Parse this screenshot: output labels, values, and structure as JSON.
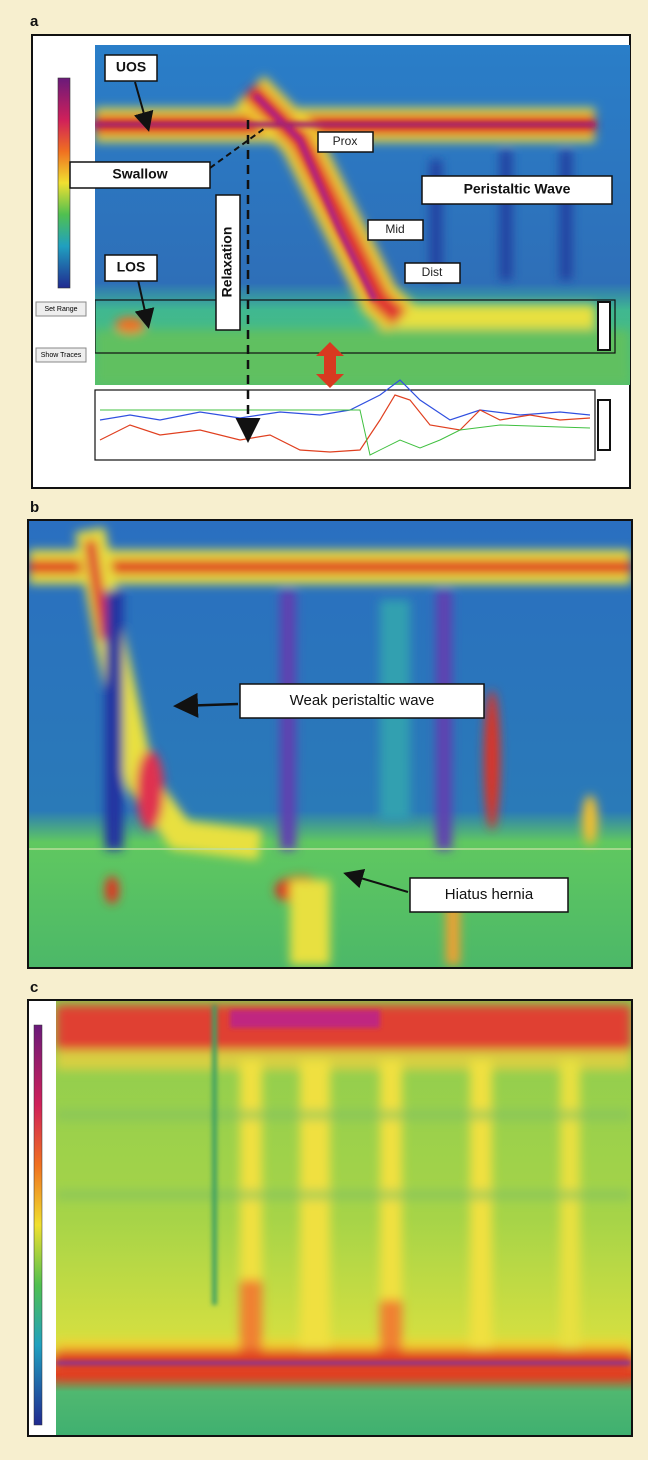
{
  "panels": [
    {
      "label": "a",
      "annotations": [
        "UOS",
        "Swallow",
        "LOS",
        "Relaxation",
        "Prox",
        "Mid",
        "Dist",
        "Peristaltic Wave"
      ],
      "buttons": [
        "Set Range",
        "Show Traces"
      ]
    },
    {
      "label": "b",
      "annotations": [
        "Weak peristaltic wave",
        "Hiatus hernia"
      ]
    },
    {
      "label": "c"
    }
  ]
}
